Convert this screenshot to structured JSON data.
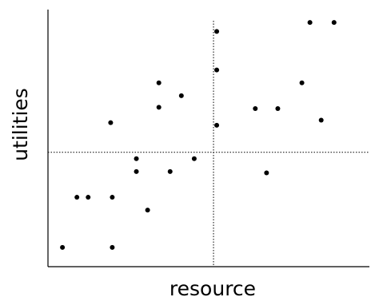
{
  "chart_data": {
    "type": "scatter",
    "title": "",
    "xlabel": "resource",
    "ylabel": "utilities",
    "xlim": [
      0,
      100
    ],
    "ylim": [
      0,
      100
    ],
    "grid": false,
    "legend": "none",
    "reference_lines": {
      "x": 51.5,
      "y": 44.5
    },
    "series": [
      {
        "color": "#000000",
        "points": [
          {
            "x": 4.5,
            "y": 7.5
          },
          {
            "x": 9,
            "y": 27
          },
          {
            "x": 12.5,
            "y": 27
          },
          {
            "x": 19.5,
            "y": 56
          },
          {
            "x": 20,
            "y": 27
          },
          {
            "x": 20,
            "y": 7.5
          },
          {
            "x": 27.5,
            "y": 42
          },
          {
            "x": 27.5,
            "y": 37
          },
          {
            "x": 31,
            "y": 22
          },
          {
            "x": 34.5,
            "y": 71.5
          },
          {
            "x": 34.5,
            "y": 62
          },
          {
            "x": 38,
            "y": 37
          },
          {
            "x": 41.5,
            "y": 66.5
          },
          {
            "x": 45.5,
            "y": 42
          },
          {
            "x": 52.5,
            "y": 91.5
          },
          {
            "x": 52.5,
            "y": 76.5
          },
          {
            "x": 52.5,
            "y": 55
          },
          {
            "x": 64.5,
            "y": 61.5
          },
          {
            "x": 68,
            "y": 36.5
          },
          {
            "x": 71.5,
            "y": 61.5
          },
          {
            "x": 79,
            "y": 71.5
          },
          {
            "x": 81.5,
            "y": 95
          },
          {
            "x": 85,
            "y": 57
          },
          {
            "x": 89,
            "y": 95
          }
        ]
      }
    ]
  }
}
